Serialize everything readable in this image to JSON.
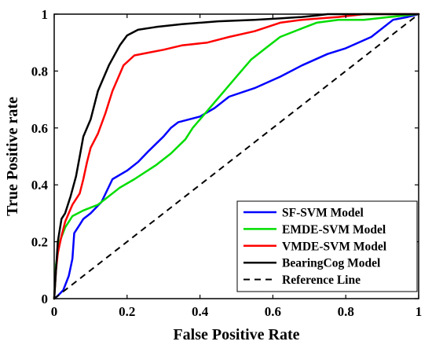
{
  "chart_data": {
    "type": "line",
    "title": "",
    "xlabel": "False Positive Rate",
    "ylabel": "True Positive rate",
    "xlim": [
      0,
      1
    ],
    "ylim": [
      0,
      1
    ],
    "xticks": [
      "0",
      "0.2",
      "0.4",
      "0.6",
      "0.8",
      "1"
    ],
    "yticks": [
      "0",
      "0.2",
      "0.4",
      "0.6",
      "0.8",
      "1"
    ],
    "grid": false,
    "legend_position": "bottom-right",
    "series": [
      {
        "name": "SF-SVM Model",
        "color": "#0000ff",
        "dash": "solid",
        "x": [
          0,
          0.01,
          0.025,
          0.04,
          0.05,
          0.055,
          0.07,
          0.08,
          0.1,
          0.13,
          0.16,
          0.2,
          0.23,
          0.26,
          0.3,
          0.32,
          0.34,
          0.4,
          0.44,
          0.48,
          0.55,
          0.62,
          0.68,
          0.75,
          0.8,
          0.87,
          0.93,
          0.97,
          1
        ],
        "y": [
          0,
          0.01,
          0.03,
          0.08,
          0.14,
          0.23,
          0.26,
          0.28,
          0.3,
          0.34,
          0.42,
          0.45,
          0.48,
          0.52,
          0.57,
          0.6,
          0.62,
          0.64,
          0.67,
          0.71,
          0.74,
          0.78,
          0.82,
          0.86,
          0.88,
          0.92,
          0.98,
          0.99,
          1
        ]
      },
      {
        "name": "EMDE-SVM Model",
        "color": "#00dd00",
        "dash": "solid",
        "x": [
          0,
          0.005,
          0.015,
          0.03,
          0.05,
          0.08,
          0.12,
          0.15,
          0.18,
          0.22,
          0.28,
          0.32,
          0.36,
          0.38,
          0.42,
          0.46,
          0.5,
          0.54,
          0.58,
          0.62,
          0.68,
          0.72,
          0.78,
          0.85,
          0.92,
          1
        ],
        "y": [
          0,
          0.12,
          0.2,
          0.25,
          0.29,
          0.31,
          0.33,
          0.36,
          0.39,
          0.42,
          0.47,
          0.51,
          0.56,
          0.6,
          0.66,
          0.72,
          0.78,
          0.84,
          0.88,
          0.92,
          0.95,
          0.97,
          0.98,
          0.98,
          0.99,
          1
        ]
      },
      {
        "name": "VMDE-SVM Model",
        "color": "#ff0000",
        "dash": "solid",
        "x": [
          0,
          0.005,
          0.01,
          0.02,
          0.03,
          0.05,
          0.07,
          0.08,
          0.09,
          0.1,
          0.12,
          0.14,
          0.16,
          0.19,
          0.22,
          0.26,
          0.3,
          0.35,
          0.42,
          0.48,
          0.55,
          0.62,
          0.68,
          0.73,
          0.78,
          0.85,
          1
        ],
        "y": [
          0,
          0.1,
          0.16,
          0.22,
          0.27,
          0.33,
          0.37,
          0.42,
          0.48,
          0.53,
          0.58,
          0.65,
          0.73,
          0.82,
          0.855,
          0.865,
          0.875,
          0.89,
          0.9,
          0.92,
          0.94,
          0.97,
          0.98,
          0.985,
          0.99,
          1,
          1
        ]
      },
      {
        "name": "BearingCog Model",
        "color": "#000000",
        "dash": "solid",
        "x": [
          0,
          0.005,
          0.01,
          0.02,
          0.03,
          0.045,
          0.06,
          0.07,
          0.08,
          0.1,
          0.12,
          0.15,
          0.18,
          0.2,
          0.23,
          0.28,
          0.35,
          0.45,
          0.55,
          0.62,
          0.68,
          0.72,
          0.75,
          0.8,
          1
        ],
        "y": [
          0,
          0.1,
          0.2,
          0.28,
          0.3,
          0.36,
          0.43,
          0.5,
          0.57,
          0.63,
          0.73,
          0.82,
          0.89,
          0.925,
          0.945,
          0.955,
          0.965,
          0.975,
          0.98,
          0.985,
          0.99,
          0.995,
          1,
          1,
          1
        ]
      },
      {
        "name": "Reference Line",
        "color": "#000000",
        "dash": "dashed",
        "x": [
          0,
          1
        ],
        "y": [
          0,
          1
        ]
      }
    ]
  }
}
